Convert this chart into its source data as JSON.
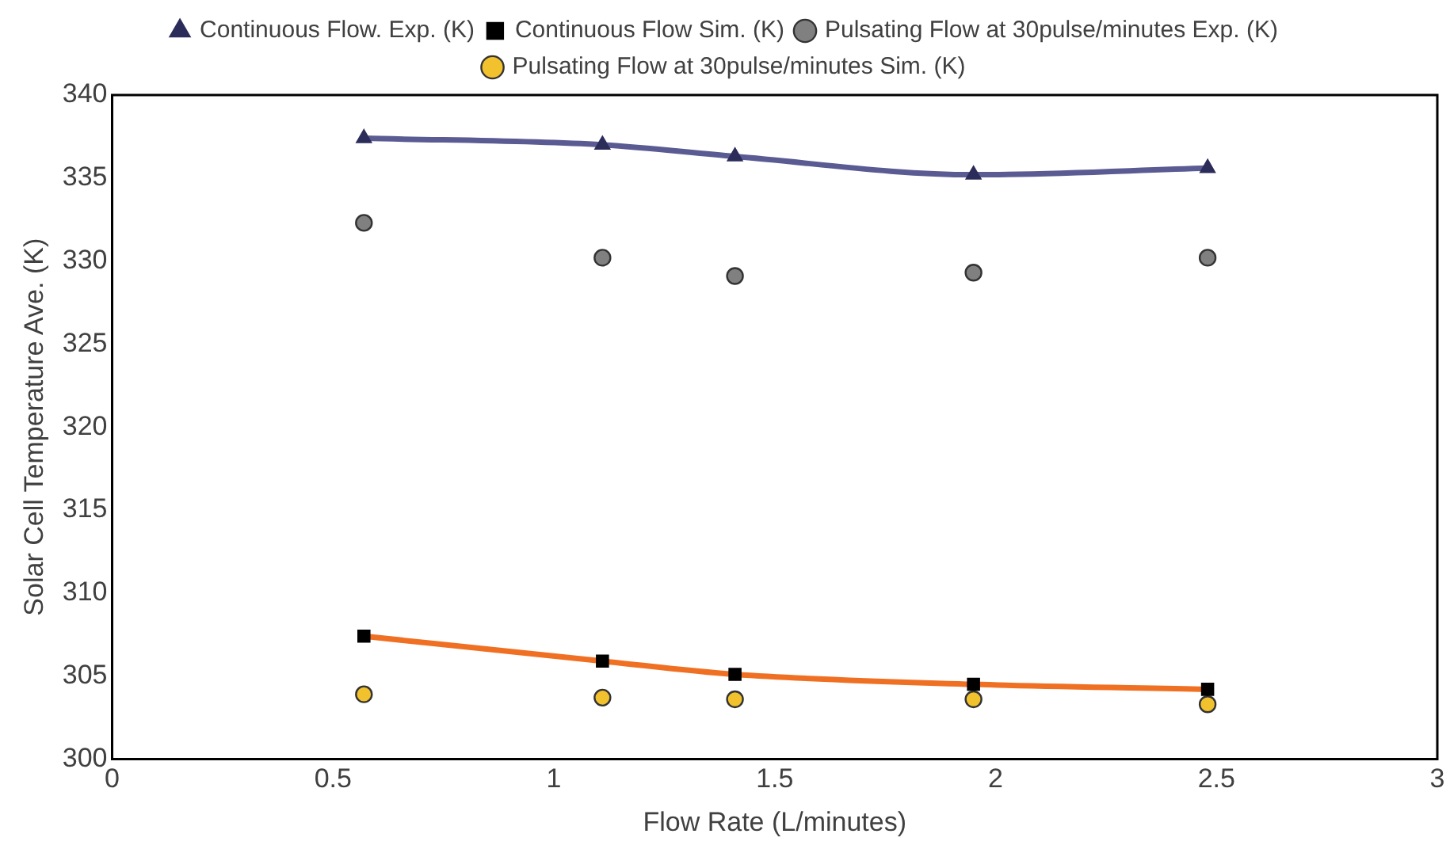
{
  "chart_data": {
    "type": "line",
    "xlabel": "Flow Rate (L/minutes)",
    "ylabel": "Solar Cell Temperature Ave. (K)",
    "xlim": [
      0,
      3
    ],
    "xticks": [
      0,
      0.5,
      1,
      1.5,
      2,
      2.5,
      3
    ],
    "ylim": [
      300,
      340
    ],
    "yticks": [
      300,
      305,
      310,
      315,
      320,
      325,
      330,
      335,
      340
    ],
    "grid": false,
    "legend": "top",
    "series": [
      {
        "name": "Continuous Flow. Exp. (K)",
        "color": "#5b5b93",
        "marker": "triangle",
        "x": [
          0.57,
          1.11,
          1.41,
          1.95,
          2.48
        ],
        "values": [
          337.4,
          337.0,
          336.3,
          335.2,
          335.6
        ]
      },
      {
        "name": "Continuous Flow Sim. (K)",
        "color": "#f07023",
        "marker": "square",
        "x": [
          0.57,
          1.11,
          1.41,
          1.95,
          2.48
        ],
        "values": [
          307.4,
          305.9,
          305.1,
          304.5,
          304.2
        ]
      },
      {
        "name": "Pulsating Flow at 30pulse/minutes Exp. (K)",
        "type": "scatter",
        "color": "#808080",
        "marker": "circle",
        "x": [
          0.57,
          1.11,
          1.41,
          1.95,
          2.48
        ],
        "values": [
          332.3,
          330.2,
          329.1,
          329.3,
          330.2
        ]
      },
      {
        "name": "Pulsating Flow at 30pulse/minutes Sim. (K)",
        "type": "scatter",
        "color": "#f2c12e",
        "marker": "circle",
        "x": [
          0.57,
          1.11,
          1.41,
          1.95,
          2.48
        ],
        "values": [
          303.9,
          303.7,
          303.6,
          303.6,
          303.3
        ]
      }
    ]
  }
}
